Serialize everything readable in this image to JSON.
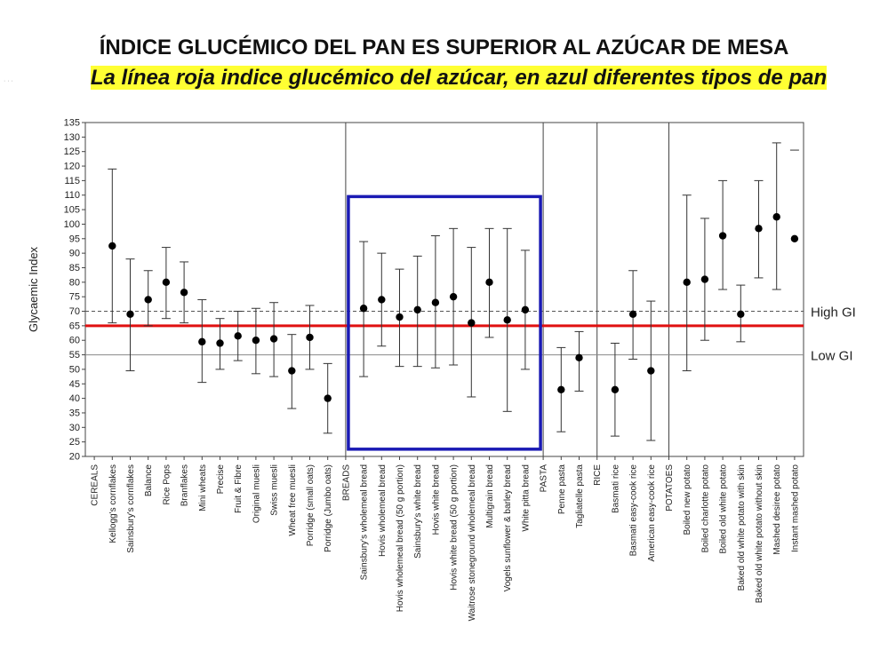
{
  "header": {
    "title": "ÍNDICE GLUCÉMICO DEL PAN ES SUPERIOR AL AZÚCAR DE MESA",
    "subtitle": "La línea roja indice glucémico del azúcar, en azul diferentes tipos de pan",
    "corner_mark": "· · ·"
  },
  "colors": {
    "sugar_line": "#e01010",
    "highlight_box": "#1a1ab4",
    "points": "#000000",
    "highlight": "#ffff33"
  },
  "chart_data": {
    "type": "scatter",
    "title": "",
    "xlabel": "",
    "ylabel": "Glycaemic Index",
    "ylim": [
      20,
      135
    ],
    "yticks": [
      20,
      25,
      30,
      35,
      40,
      45,
      50,
      55,
      60,
      65,
      70,
      75,
      80,
      85,
      90,
      95,
      100,
      105,
      110,
      115,
      120,
      125,
      130,
      135
    ],
    "grid": false,
    "categories": [
      "CEREALS",
      "Kellogg's cornflakes",
      "Sainsbury's cornflakes",
      "Balance",
      "Rice Pops",
      "Branflakes",
      "Mini wheats",
      "Precise",
      "Fruit & Fibre",
      "Original muesli",
      "Swiss muesli",
      "Wheat free muesli",
      "Porridge (small oats)",
      "Porridge (Jumbo oats)",
      "BREADS",
      "Sainsbury's wholemeal bread",
      "Hovis wholemeal bread",
      "Hovis wholemeal bread (50 g portion)",
      "Sainsbury's white bread",
      "Hovis white bread",
      "Hovis white bread (50 g portion)",
      "Waitrose stoneground wholemeal bread",
      "Multigrain bread",
      "Vogels sunflower & barley bread",
      "White pitta bread",
      "PASTA",
      "Penne pasta",
      "Tagliatelle pasta",
      "RICE",
      "Basmati rice",
      "Basmati easy-cook rice",
      "American easy-cook rice",
      "POTATOES",
      "Boiled new potato",
      "Boiled charlotte potato",
      "Boiled old white potato",
      "Baked old white potato with skin",
      "Baked old white potato without skin",
      "Mashed desiree potato",
      "Instant mashed potato"
    ],
    "series": [
      {
        "values": [
          null,
          92.5,
          69,
          74,
          80,
          76.5,
          59.5,
          59,
          61.5,
          60,
          60.5,
          49.5,
          61,
          40,
          null,
          71,
          74,
          68,
          70.5,
          73,
          75,
          66,
          80,
          67,
          70.5,
          null,
          43,
          54,
          null,
          43,
          69,
          49.5,
          null,
          80,
          81,
          96,
          69,
          98.5,
          102.5,
          95
        ],
        "lower": [
          null,
          66,
          49.5,
          65,
          67.5,
          66,
          45.5,
          50,
          53,
          48.5,
          47.5,
          36.5,
          50,
          28,
          null,
          47.5,
          58,
          51,
          51,
          50.5,
          51.5,
          40.5,
          61,
          35.5,
          50,
          null,
          28.5,
          42.5,
          null,
          27,
          53.5,
          25.5,
          null,
          49.5,
          60,
          77.5,
          59.5,
          81.5,
          77.5,
          null
        ],
        "upper": [
          null,
          119,
          88,
          84,
          92,
          87,
          74,
          67.5,
          70,
          71,
          73,
          62,
          72,
          52,
          null,
          94,
          90,
          84.5,
          89,
          96,
          98.5,
          92,
          98.5,
          98.5,
          91,
          null,
          57.5,
          63,
          null,
          59,
          84,
          73.5,
          null,
          110,
          102,
          115,
          79,
          115,
          128,
          125.5
        ]
      }
    ],
    "reference_lines": [
      {
        "label": "High GI",
        "value": 70,
        "style": "dashed"
      },
      {
        "label": "Low GI",
        "value": 55,
        "style": "solid"
      },
      {
        "label": "",
        "value": 65,
        "style": "red-solid"
      }
    ],
    "highlight_box": {
      "from_category": "Sainsbury's wholemeal bread",
      "to_category": "White pitta bread",
      "y_range": [
        22.5,
        109.5
      ]
    },
    "group_separators": [
      "BREADS",
      "PASTA",
      "RICE",
      "POTATOES"
    ]
  }
}
